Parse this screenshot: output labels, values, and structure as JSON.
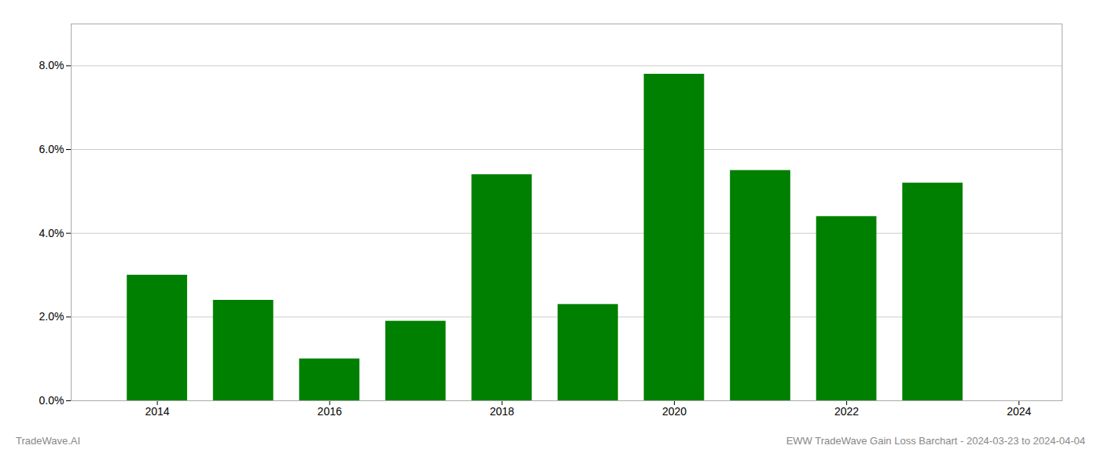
{
  "chart_data": {
    "type": "bar",
    "x": [
      2014,
      2015,
      2016,
      2017,
      2018,
      2019,
      2020,
      2021,
      2022,
      2023
    ],
    "values": [
      0.03,
      0.024,
      0.01,
      0.019,
      0.054,
      0.023,
      0.078,
      0.055,
      0.044,
      0.052
    ],
    "color": "#008000",
    "xlim": [
      2013.0,
      2024.5
    ],
    "xticks": [
      2014,
      2016,
      2018,
      2020,
      2022,
      2024
    ],
    "ylim": [
      0,
      0.09
    ],
    "yticks": [
      {
        "value": 0.0,
        "label": "0.0%"
      },
      {
        "value": 0.02,
        "label": "2.0%"
      },
      {
        "value": 0.04,
        "label": "4.0%"
      },
      {
        "value": 0.06,
        "label": "6.0%"
      },
      {
        "value": 0.08,
        "label": "8.0%"
      }
    ],
    "grid": true,
    "annotations": [
      "TradeWave.AI",
      "EWW TradeWave Gain Loss Barchart - 2024-03-23 to 2024-04-04"
    ]
  }
}
